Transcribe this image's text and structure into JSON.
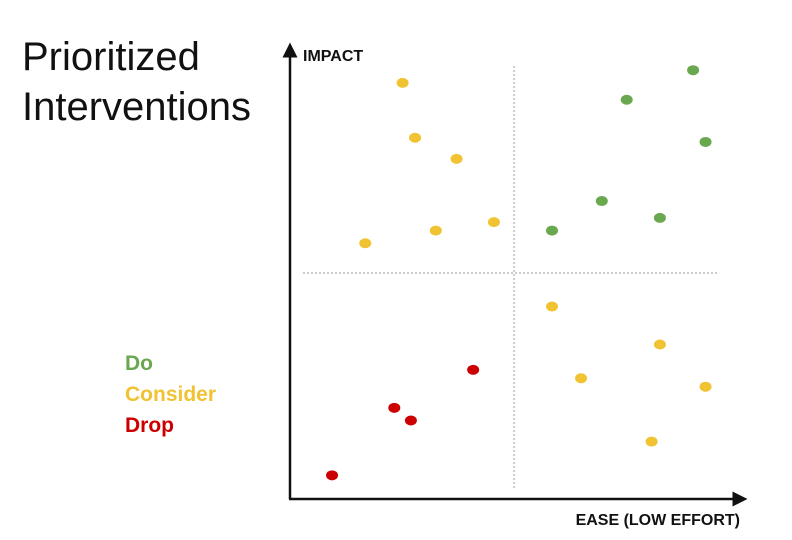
{
  "title_lines": [
    "Prioritized",
    "Interventions"
  ],
  "legend": [
    {
      "label": "Do",
      "color": "#6aa84f"
    },
    {
      "label": "Consider",
      "color": "#f1c232"
    },
    {
      "label": "Drop",
      "color": "#cc0000"
    }
  ],
  "chart_data": {
    "type": "scatter",
    "title": "Prioritized Interventions",
    "xlabel": "EASE (LOW EFFORT)",
    "ylabel": "IMPACT",
    "xlim": [
      0,
      10
    ],
    "ylim": [
      0,
      10
    ],
    "grid": false,
    "quadrant_dividers": {
      "x": 5,
      "y": 5
    },
    "legend_placement": "left",
    "series": [
      {
        "name": "Do",
        "color": "#6aa84f",
        "points": [
          {
            "x": 9.4,
            "y": 9.9
          },
          {
            "x": 7.8,
            "y": 9.2
          },
          {
            "x": 9.7,
            "y": 8.2
          },
          {
            "x": 7.2,
            "y": 6.8
          },
          {
            "x": 8.6,
            "y": 6.4
          },
          {
            "x": 6.0,
            "y": 6.1
          }
        ]
      },
      {
        "name": "Consider",
        "color": "#f1c232",
        "points": [
          {
            "x": 2.4,
            "y": 9.6
          },
          {
            "x": 2.7,
            "y": 8.3
          },
          {
            "x": 3.7,
            "y": 7.8
          },
          {
            "x": 1.5,
            "y": 5.8
          },
          {
            "x": 3.2,
            "y": 6.1
          },
          {
            "x": 4.6,
            "y": 6.3
          },
          {
            "x": 6.0,
            "y": 4.3
          },
          {
            "x": 8.6,
            "y": 3.4
          },
          {
            "x": 6.7,
            "y": 2.6
          },
          {
            "x": 9.7,
            "y": 2.4
          },
          {
            "x": 8.4,
            "y": 1.1
          }
        ]
      },
      {
        "name": "Drop",
        "color": "#cc0000",
        "points": [
          {
            "x": 4.1,
            "y": 2.8
          },
          {
            "x": 2.2,
            "y": 1.9
          },
          {
            "x": 2.6,
            "y": 1.6
          },
          {
            "x": 0.7,
            "y": 0.3
          }
        ]
      }
    ]
  }
}
